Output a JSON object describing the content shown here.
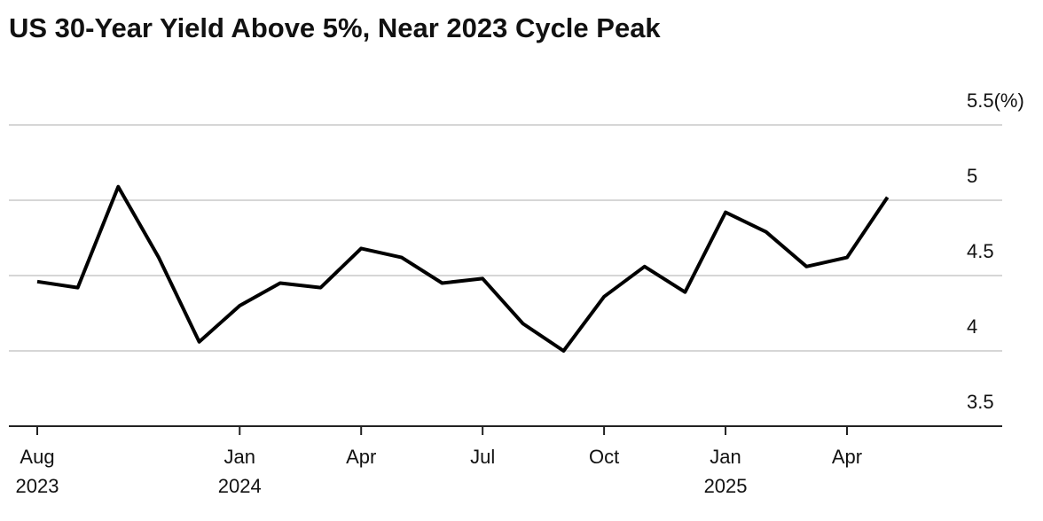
{
  "chart_data": {
    "type": "line",
    "title": "US 30-Year Yield Above 5%, Near 2023 Cycle Peak",
    "x": [
      "2023-08",
      "2023-09",
      "2023-10",
      "2023-11",
      "2023-12",
      "2024-01",
      "2024-02",
      "2024-03",
      "2024-04",
      "2024-05",
      "2024-06",
      "2024-07",
      "2024-08",
      "2024-09",
      "2024-10",
      "2024-11",
      "2024-12",
      "2025-01",
      "2025-02",
      "2025-03",
      "2025-04",
      "2025-05"
    ],
    "series": [
      {
        "name": "US 30-Year Yield",
        "color": "#000000",
        "values": [
          4.46,
          4.42,
          5.09,
          4.62,
          4.06,
          4.3,
          4.45,
          4.42,
          4.68,
          4.62,
          4.45,
          4.48,
          4.18,
          4.0,
          4.36,
          4.56,
          4.39,
          4.92,
          4.79,
          4.56,
          4.62,
          5.02
        ]
      }
    ],
    "ylim": [
      3.5,
      5.5
    ],
    "yticks": [
      3.5,
      4.0,
      4.5,
      5.0,
      {
        "value": 5.5,
        "label": "5.5(%)"
      }
    ],
    "xticks": [
      {
        "value": "2023-08",
        "label": "Aug"
      },
      {
        "value": "2024-01",
        "label": "Jan"
      },
      {
        "value": "2024-04",
        "label": "Apr"
      },
      {
        "value": "2024-07",
        "label": "Jul"
      },
      {
        "value": "2024-10",
        "label": "Oct"
      },
      {
        "value": "2025-01",
        "label": "Jan"
      },
      {
        "value": "2025-04",
        "label": "Apr"
      }
    ],
    "year_labels": [
      {
        "value": "2023-08",
        "label": "2023"
      },
      {
        "value": "2024-01",
        "label": "2024"
      },
      {
        "value": "2025-01",
        "label": "2025"
      }
    ],
    "grid": true
  }
}
